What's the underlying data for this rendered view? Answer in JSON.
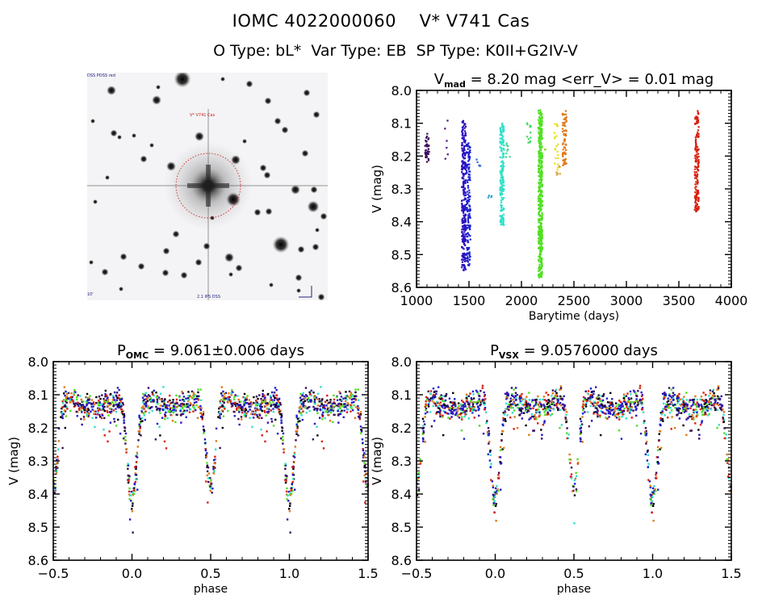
{
  "header": {
    "title": "IOMC 4022000060    V* V741 Cas",
    "subtitle": "O Type: bL*  Var Type: EB  SP Type: K0II+G2IV-V"
  },
  "sky_image": {
    "top_left_label": "DSS POSS red",
    "target_label": "V* V741 Cas",
    "bottom_left_label": "10'",
    "bottom_label": "2.1 IPS DSS",
    "aperture_color": "#d02020",
    "compass": [
      "N",
      "E"
    ]
  },
  "chart_data": [
    {
      "id": "lightcurve",
      "type": "scatter",
      "title_main": "V",
      "title_sub": "mad",
      "title_rest": " = 8.20 mag <err_V> = 0.01 mag",
      "xlabel": "Barytime (days)",
      "ylabel": "V (mag)",
      "xlim": [
        1000,
        4000
      ],
      "ylim": [
        8.6,
        8.0
      ],
      "y_inverted": true,
      "xticks": [
        1000,
        1500,
        2000,
        2500,
        3000,
        3500,
        4000
      ],
      "xtick_labels": [
        "1000",
        "1500",
        "2000",
        "2500",
        "3000",
        "3500",
        "4000"
      ],
      "yticks": [
        8.0,
        8.1,
        8.2,
        8.3,
        8.4,
        8.5,
        8.6
      ],
      "ytick_labels": [
        "8.0",
        "8.1",
        "8.2",
        "8.3",
        "8.4",
        "8.5",
        "8.6"
      ],
      "series": [
        {
          "name": "season-1",
          "color": "#3a0a5a",
          "x": [
            1100
          ],
          "vmin": 8.13,
          "vmax": 8.22,
          "n": 40
        },
        {
          "name": "season-2",
          "color": "#4a1080",
          "x": [
            1270,
            1290
          ],
          "vmin": 8.09,
          "vmax": 8.22,
          "n": 6
        },
        {
          "name": "season-3",
          "color": "#2a10c0",
          "x": [
            1450
          ],
          "vmin": 8.09,
          "vmax": 8.55,
          "n": 260
        },
        {
          "name": "season-4",
          "color": "#1a20d0",
          "x": [
            1495
          ],
          "vmin": 8.16,
          "vmax": 8.54,
          "n": 140
        },
        {
          "name": "season-5",
          "color": "#2a70d0",
          "x": [
            1590
          ],
          "vmin": 8.21,
          "vmax": 8.23,
          "n": 5
        },
        {
          "name": "season-6",
          "color": "#30a0c8",
          "x": [
            1700
          ],
          "vmin": 8.31,
          "vmax": 8.33,
          "n": 4
        },
        {
          "name": "season-7",
          "color": "#30e0c8",
          "x": [
            1815
          ],
          "vmin": 8.1,
          "vmax": 8.42,
          "n": 180
        },
        {
          "name": "season-8",
          "color": "#40d890",
          "x": [
            1870
          ],
          "vmin": 8.16,
          "vmax": 8.21,
          "n": 8
        },
        {
          "name": "season-9",
          "color": "#40d860",
          "x": [
            2070
          ],
          "vmin": 8.09,
          "vmax": 8.16,
          "n": 12
        },
        {
          "name": "season-10",
          "color": "#50e020",
          "x": [
            2180
          ],
          "vmin": 8.06,
          "vmax": 8.57,
          "n": 420
        },
        {
          "name": "season-11",
          "color": "#90d820",
          "x": [
            2240
          ],
          "vmin": 8.18,
          "vmax": 8.18,
          "n": 2
        },
        {
          "name": "season-12",
          "color": "#e8e020",
          "x": [
            2330
          ],
          "vmin": 8.09,
          "vmax": 8.25,
          "n": 20
        },
        {
          "name": "season-13",
          "color": "#e0a030",
          "x": [
            2350
          ],
          "vmin": 8.23,
          "vmax": 8.26,
          "n": 6
        },
        {
          "name": "season-14",
          "color": "#e07818",
          "x": [
            2410
          ],
          "vmin": 8.06,
          "vmax": 8.23,
          "n": 60
        },
        {
          "name": "season-15",
          "color": "#d82010",
          "x": [
            3670
          ],
          "vmin": 8.06,
          "vmax": 8.37,
          "n": 150
        }
      ]
    },
    {
      "id": "phase-omc",
      "type": "scatter",
      "title_main": "P",
      "title_sub": "OMC",
      "title_rest": " = 9.061±0.006 days",
      "period_days": 9.061,
      "period_err_days": 0.006,
      "xlabel": "phase",
      "ylabel": "V (mag)",
      "xlim": [
        -0.5,
        1.5
      ],
      "ylim": [
        8.6,
        8.0
      ],
      "y_inverted": true,
      "xticks": [
        -0.5,
        0.0,
        0.5,
        1.0,
        1.5
      ],
      "xtick_labels": [
        "−0.5",
        "0.0",
        "0.5",
        "1.0",
        "1.5"
      ],
      "yticks": [
        8.0,
        8.1,
        8.2,
        8.3,
        8.4,
        8.5,
        8.6
      ],
      "ytick_labels": [
        "8.0",
        "8.1",
        "8.2",
        "8.3",
        "8.4",
        "8.5",
        "8.6"
      ],
      "curve": {
        "max_brightness": 8.1,
        "primary_min_phase": 0.0,
        "primary_min": 8.42,
        "secondary_min_phase": 0.5,
        "secondary_min": 8.38,
        "scatter": 0.06
      },
      "series_colors": [
        "#d82010",
        "#e07818",
        "#50e020",
        "#30e0c8",
        "#2a10c0",
        "#1a20d0",
        "#3a0a5a",
        "#000000"
      ]
    },
    {
      "id": "phase-vsx",
      "type": "scatter",
      "title_main": "P",
      "title_sub": "VSX",
      "title_rest": " = 9.0576000 days",
      "period_days": 9.0576,
      "xlabel": "phase",
      "ylabel": "V (mag)",
      "xlim": [
        -0.5,
        1.5
      ],
      "ylim": [
        8.6,
        8.0
      ],
      "y_inverted": true,
      "xticks": [
        -0.5,
        0.0,
        0.5,
        1.0,
        1.5
      ],
      "xtick_labels": [
        "−0.5",
        "0.0",
        "0.5",
        "1.0",
        "1.5"
      ],
      "yticks": [
        8.0,
        8.1,
        8.2,
        8.3,
        8.4,
        8.5,
        8.6
      ],
      "ytick_labels": [
        "8.0",
        "8.1",
        "8.2",
        "8.3",
        "8.4",
        "8.5",
        "8.6"
      ],
      "curve": {
        "max_brightness": 8.1,
        "primary_min_phase": 0.0,
        "primary_min": 8.42,
        "secondary_min_phase": 0.5,
        "secondary_min": 8.38,
        "scatter": 0.06
      },
      "series_colors": [
        "#d82010",
        "#e07818",
        "#50e020",
        "#30e0c8",
        "#2a10c0",
        "#1a20d0",
        "#3a0a5a",
        "#000000"
      ]
    }
  ]
}
